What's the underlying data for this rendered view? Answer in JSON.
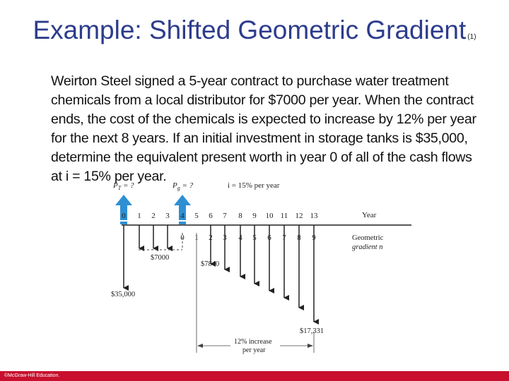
{
  "slide": {
    "title": "Example: Shifted Geometric Gradient",
    "title_sub": "(1)",
    "problem": "Weirton Steel signed a 5-year contract to purchase water treatment chemicals from a local distributor for $7000 per year. When the contract ends, the cost of the chemicals is expected to increase by 12% per year for the next 8 years. If an initial investment in storage tanks is $35,000, determine the equivalent present worth in year 0 of all of the cash flows at i = 15% per year.",
    "footer": "©McGraw-Hill Education."
  },
  "diagram": {
    "pt_label": "P",
    "pt_sub": "T",
    "pt_suffix": " = ?",
    "pg_label": "P",
    "pg_sub": "g",
    "pg_suffix": " = ?",
    "rate_label": "i = 15% per year",
    "year_label": "Year",
    "gradient_label_1": "Geometric",
    "gradient_label_2": "gradient n",
    "years": [
      "0",
      "1",
      "2",
      "3",
      "4",
      "5",
      "6",
      "7",
      "8",
      "9",
      "10",
      "11",
      "12",
      "13"
    ],
    "gradient_n": [
      "0",
      "1",
      "2",
      "3",
      "4",
      "5",
      "6",
      "7",
      "8",
      "9"
    ],
    "initial_amount": "$35,000",
    "annual_amount": "$7000",
    "first_gradient_amount": "$7840",
    "last_gradient_amount": "$17,331",
    "increase_label_1": "12% increase",
    "increase_label_2": "per year"
  },
  "colors": {
    "title": "#2d3c8c",
    "arrow_up": "#2f8fd3",
    "footer": "#c8102e"
  }
}
